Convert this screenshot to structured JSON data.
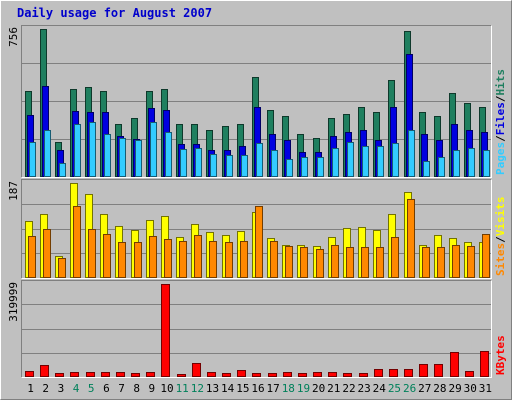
{
  "chart_data": {
    "type": "bar",
    "title": "Daily usage for August 2007",
    "categories": [
      "1",
      "2",
      "3",
      "4",
      "5",
      "6",
      "7",
      "8",
      "9",
      "10",
      "11",
      "12",
      "13",
      "14",
      "15",
      "16",
      "17",
      "18",
      "19",
      "20",
      "21",
      "22",
      "23",
      "24",
      "25",
      "26",
      "27",
      "28",
      "29",
      "30",
      "31"
    ],
    "weekend_days": [
      "4",
      "5",
      "11",
      "12",
      "18",
      "19",
      "25",
      "26"
    ],
    "panels": [
      {
        "id": "requests",
        "axis_max_label": "756",
        "ymax": 756,
        "side_labels": [
          "Pages",
          "/",
          "Files",
          "/",
          "Hits"
        ],
        "series": [
          {
            "name": "Hits",
            "color": "#1f7f5f",
            "values": [
              437,
              756,
              180,
              447,
              462,
              441,
              270,
              300,
              440,
              447,
              270,
              270,
              240,
              260,
              270,
              510,
              340,
              310,
              220,
              200,
              300,
              320,
              360,
              330,
              498,
              748,
              330,
              310,
              428,
              380,
              360
            ]
          },
          {
            "name": "Files",
            "color": "#0000e0",
            "values": [
              316,
              463,
              136,
              339,
              332,
              330,
              210,
              195,
              350,
              340,
              170,
              170,
              140,
              140,
              160,
              359,
              220,
              190,
              130,
              130,
              210,
              230,
              240,
              190,
              360,
              630,
              220,
              190,
              270,
              240,
              230
            ]
          },
          {
            "name": "Pages",
            "color": "#33ccff",
            "values": [
              180,
              240,
              70,
              270,
              280,
              220,
              200,
              190,
              280,
              230,
              145,
              150,
              120,
              110,
              110,
              172,
              140,
              90,
              100,
              100,
              150,
              180,
              160,
              160,
              174,
              240,
              80,
              100,
              140,
              150,
              140
            ]
          }
        ]
      },
      {
        "id": "visits",
        "axis_max_label": "187",
        "ymax": 187,
        "side_labels": [
          "Sites",
          "/",
          "Visits"
        ],
        "series": [
          {
            "name": "Visits",
            "color": "#ffff00",
            "values": [
              112,
              125,
              43,
              187,
              165,
              125,
              103,
              95,
              115,
              122,
              80,
              107,
              90,
              85,
              92,
              130,
              78,
              64,
              65,
              63,
              80,
              98,
              100,
              94,
              126,
              170,
              65,
              85,
              78,
              70,
              70
            ]
          },
          {
            "name": "Sites",
            "color": "#ff8800",
            "values": [
              82,
              96,
              40,
              142,
              97,
              87,
              70,
              70,
              82,
              76,
              72,
              84,
              72,
              70,
              72,
              142,
              73,
              63,
              62,
              57,
              65,
              62,
              62,
              62,
              80,
              156,
              62,
              62,
              65,
              63,
              86
            ]
          }
        ]
      },
      {
        "id": "kbytes",
        "axis_max_label": "319999",
        "ymax": 319999,
        "side_labels": [
          "KBytes"
        ],
        "series": [
          {
            "name": "KBytes",
            "color": "#ff0000",
            "values": [
              20000,
              40000,
              15000,
              18000,
              18000,
              16000,
              16000,
              14000,
              18000,
              319999,
              12000,
              47000,
              16000,
              14000,
              23000,
              14000,
              14000,
              18000,
              14000,
              16000,
              16000,
              14000,
              14000,
              26000,
              28000,
              28000,
              45000,
              46000,
              87000,
              22000,
              90000
            ]
          }
        ]
      }
    ]
  }
}
